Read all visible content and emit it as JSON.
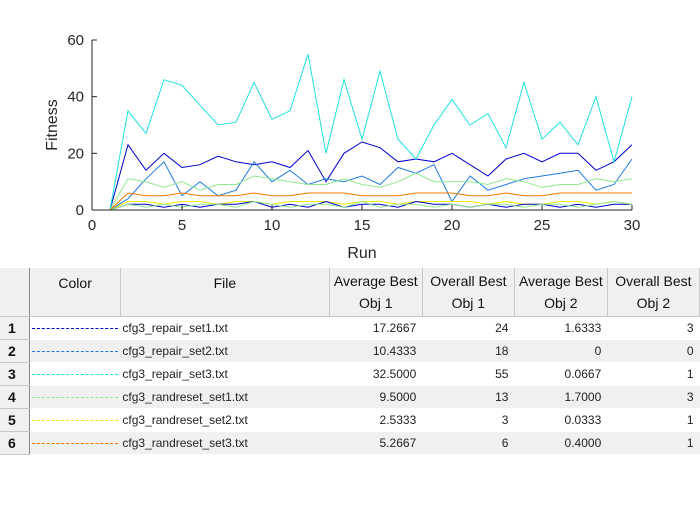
{
  "chart_data": {
    "type": "line",
    "xlabel": "Run",
    "ylabel": "Fitness",
    "xlim": [
      0,
      30
    ],
    "ylim": [
      0,
      60
    ],
    "xticks": [
      0,
      5,
      10,
      15,
      20,
      25,
      30
    ],
    "yticks": [
      0,
      20,
      40,
      60
    ],
    "grid": false,
    "series": [
      {
        "name": "cfg3_repair_set1.txt",
        "color": "#0000cc",
        "x": [
          1,
          2,
          3,
          4,
          5,
          6,
          7,
          8,
          9,
          10,
          11,
          12,
          13,
          14,
          15,
          16,
          17,
          18,
          19,
          20,
          21,
          22,
          23,
          24,
          25,
          26,
          27,
          28,
          29,
          30
        ],
        "values": [
          0,
          23,
          14,
          20,
          15,
          16,
          19,
          17,
          16,
          17,
          15,
          21,
          10,
          20,
          24,
          22,
          17,
          18,
          17,
          20,
          16,
          12,
          18,
          20,
          17,
          20,
          20,
          14,
          17,
          23
        ]
      },
      {
        "name": "cfg3_repair_set2.txt",
        "color": "#1f7be0",
        "x": [
          1,
          2,
          3,
          4,
          5,
          6,
          7,
          8,
          9,
          10,
          11,
          12,
          13,
          14,
          15,
          16,
          17,
          18,
          19,
          20,
          21,
          22,
          23,
          24,
          25,
          26,
          27,
          28,
          29,
          30
        ],
        "values": [
          0,
          4,
          11,
          17,
          5,
          10,
          5,
          7,
          17,
          10,
          14,
          9,
          11,
          10,
          12,
          9,
          15,
          13,
          16,
          3,
          12,
          7,
          9,
          11,
          12,
          13,
          14,
          7,
          9,
          18
        ]
      },
      {
        "name": "cfg3_repair_set3.txt",
        "color": "#20e0e0",
        "x": [
          1,
          2,
          3,
          4,
          5,
          6,
          7,
          8,
          9,
          10,
          11,
          12,
          13,
          14,
          15,
          16,
          17,
          18,
          19,
          20,
          21,
          22,
          23,
          24,
          25,
          26,
          27,
          28,
          29,
          30
        ],
        "values": [
          0,
          35,
          27,
          46,
          44,
          37,
          30,
          31,
          45,
          32,
          35,
          55,
          20,
          46,
          25,
          49,
          25,
          18,
          30,
          39,
          30,
          34,
          22,
          45,
          25,
          31,
          23,
          40,
          17,
          40
        ]
      },
      {
        "name": "cfg3_randreset_set1.txt",
        "color": "#90e890",
        "x": [
          1,
          2,
          3,
          4,
          5,
          6,
          7,
          8,
          9,
          10,
          11,
          12,
          13,
          14,
          15,
          16,
          17,
          18,
          19,
          20,
          21,
          22,
          23,
          24,
          25,
          26,
          27,
          28,
          29,
          30
        ],
        "values": [
          0,
          11,
          10,
          8,
          10,
          7,
          9,
          9,
          12,
          11,
          10,
          9,
          9,
          11,
          9,
          8,
          10,
          13,
          10,
          10,
          10,
          9,
          11,
          10,
          8,
          9,
          9,
          11,
          10,
          11
        ]
      },
      {
        "name": "cfg3_randreset_set2.txt",
        "color": "#f0e800",
        "x": [
          1,
          2,
          3,
          4,
          5,
          6,
          7,
          8,
          9,
          10,
          11,
          12,
          13,
          14,
          15,
          16,
          17,
          18,
          19,
          20,
          21,
          22,
          23,
          24,
          25,
          26,
          27,
          28,
          29,
          30
        ],
        "values": [
          0,
          3,
          3,
          2,
          3,
          3,
          2,
          3,
          3,
          2,
          3,
          3,
          3,
          2,
          3,
          3,
          2,
          3,
          3,
          3,
          3,
          2,
          3,
          2,
          2,
          3,
          3,
          2,
          3,
          2
        ]
      },
      {
        "name": "cfg3_randreset_set3.txt",
        "color": "#f07800",
        "x": [
          1,
          2,
          3,
          4,
          5,
          6,
          7,
          8,
          9,
          10,
          11,
          12,
          13,
          14,
          15,
          16,
          17,
          18,
          19,
          20,
          21,
          22,
          23,
          24,
          25,
          26,
          27,
          28,
          29,
          30
        ],
        "values": [
          0,
          6,
          5,
          5,
          6,
          5,
          5,
          5,
          6,
          5,
          5,
          6,
          6,
          6,
          5,
          5,
          5,
          6,
          6,
          6,
          5,
          5,
          6,
          5,
          5,
          6,
          6,
          6,
          6,
          6
        ]
      },
      {
        "name": "cfg3_repair_set1.txt Obj 2",
        "color": "#0000cc",
        "x": [
          1,
          2,
          3,
          4,
          5,
          6,
          7,
          8,
          9,
          10,
          11,
          12,
          13,
          14,
          15,
          16,
          17,
          18,
          19,
          20,
          21,
          22,
          23,
          24,
          25,
          26,
          27,
          28,
          29,
          30
        ],
        "values": [
          0,
          2,
          2,
          1,
          2,
          1,
          2,
          2,
          3,
          1,
          2,
          1,
          3,
          1,
          2,
          2,
          1,
          3,
          2,
          2,
          1,
          2,
          1,
          2,
          2,
          1,
          2,
          1,
          2,
          2
        ]
      },
      {
        "name": "cfg3_randreset_set1.txt Obj 2",
        "color": "#90e890",
        "x": [
          1,
          2,
          3,
          4,
          5,
          6,
          7,
          8,
          9,
          10,
          11,
          12,
          13,
          14,
          15,
          16,
          17,
          18,
          19,
          20,
          21,
          22,
          23,
          24,
          25,
          26,
          27,
          28,
          29,
          30
        ],
        "values": [
          0,
          2,
          1,
          2,
          1,
          2,
          2,
          1,
          3,
          2,
          1,
          2,
          2,
          1,
          3,
          1,
          2,
          2,
          1,
          2,
          1,
          2,
          2,
          1,
          2,
          2,
          1,
          2,
          3,
          2
        ]
      }
    ]
  },
  "table": {
    "headers": {
      "color": "Color",
      "file": "File",
      "avg_obj1_l1": "Average Best",
      "avg_obj1_l2": "Obj 1",
      "ovr_obj1_l1": "Overall Best",
      "ovr_obj1_l2": "Obj 1",
      "avg_obj2_l1": "Average Best",
      "avg_obj2_l2": "Obj 2",
      "ovr_obj2_l1": "Overall Best",
      "ovr_obj2_l2": "Obj 2"
    },
    "rows": [
      {
        "num": "1",
        "color": "#0000cc",
        "file": "cfg3_repair_set1.txt",
        "avg1": "17.2667",
        "best1": "24",
        "avg2": "1.6333",
        "best2": "3"
      },
      {
        "num": "2",
        "color": "#1f7be0",
        "file": "cfg3_repair_set2.txt",
        "avg1": "10.4333",
        "best1": "18",
        "avg2": "0",
        "best2": "0"
      },
      {
        "num": "3",
        "color": "#20e0e0",
        "file": "cfg3_repair_set3.txt",
        "avg1": "32.5000",
        "best1": "55",
        "avg2": "0.0667",
        "best2": "1"
      },
      {
        "num": "4",
        "color": "#90e890",
        "file": "cfg3_randreset_set1.txt",
        "avg1": "9.5000",
        "best1": "13",
        "avg2": "1.7000",
        "best2": "3"
      },
      {
        "num": "5",
        "color": "#f0e800",
        "file": "cfg3_randreset_set2.txt",
        "avg1": "2.5333",
        "best1": "3",
        "avg2": "0.0333",
        "best2": "1"
      },
      {
        "num": "6",
        "color": "#f07800",
        "file": "cfg3_randreset_set3.txt",
        "avg1": "5.2667",
        "best1": "6",
        "avg2": "0.4000",
        "best2": "1"
      }
    ]
  }
}
